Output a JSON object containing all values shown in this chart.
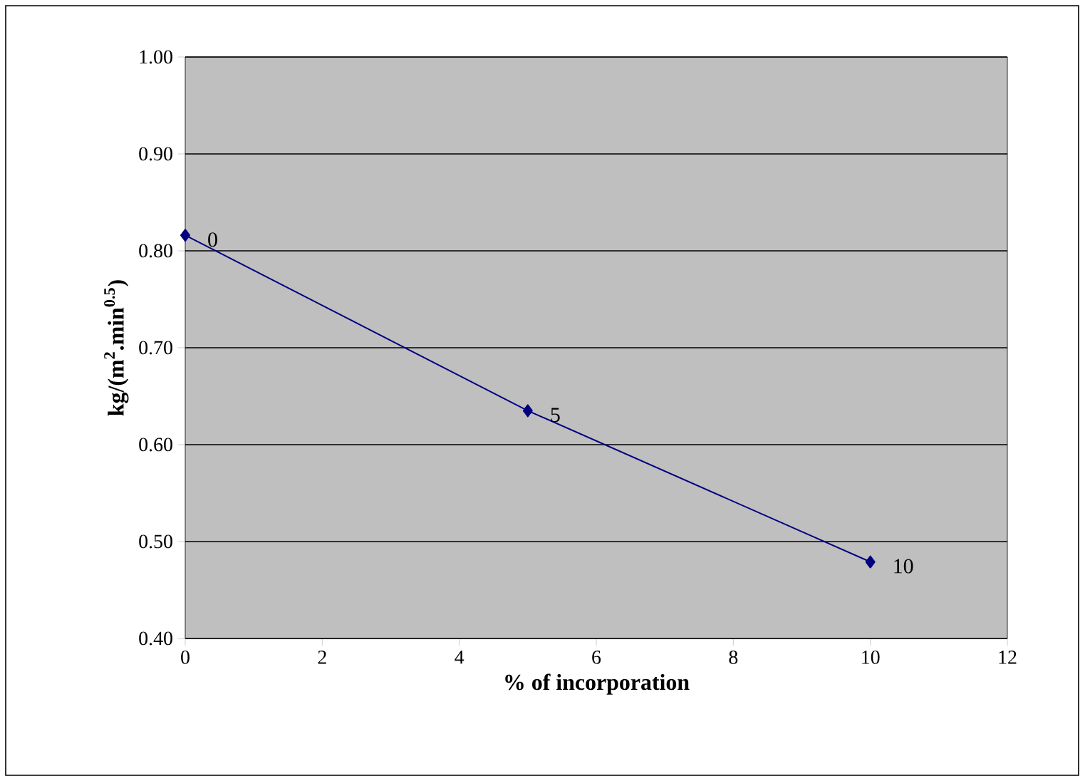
{
  "chart_data": {
    "type": "line",
    "xlabel": "% of incorporation",
    "ylabel": "kg/(m$^{2}$.min$^{0.5}$)",
    "x": [
      0,
      5,
      10
    ],
    "series": [
      {
        "color": "#000080",
        "values": [
          0.816,
          0.635,
          0.479
        ]
      }
    ],
    "xlim": [
      0,
      12
    ],
    "xticks": [
      0,
      2,
      4,
      6,
      8,
      10,
      12
    ],
    "ylim": [
      0.4,
      1.0
    ],
    "yticks": [
      {
        "value": 0.4,
        "label": "0.40"
      },
      {
        "value": 0.5,
        "label": "0.50"
      },
      {
        "value": 0.6,
        "label": "0.60"
      },
      {
        "value": 0.7,
        "label": "0.70"
      },
      {
        "value": 0.8,
        "label": "0.80"
      },
      {
        "value": 0.9,
        "label": "0.90"
      },
      {
        "value": 1.0,
        "label": "1.00"
      }
    ],
    "grid": "y",
    "marker": "diamond",
    "line_style": "solid",
    "annotations": [
      {
        "text": "0",
        "x": 0,
        "y": 0.816
      },
      {
        "text": "5",
        "x": 5,
        "y": 0.635
      },
      {
        "text": "10",
        "x": 10,
        "y": 0.479
      }
    ]
  }
}
